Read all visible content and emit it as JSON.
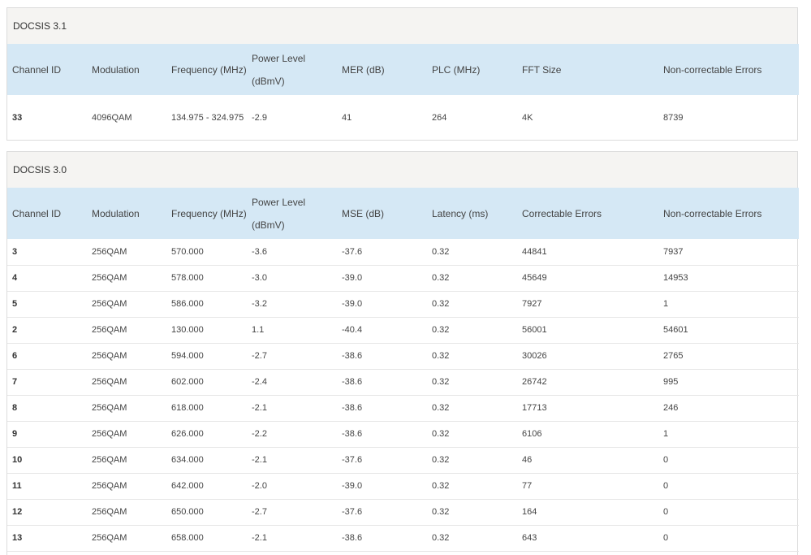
{
  "docsis31": {
    "title": "DOCSIS 3.1",
    "headers": [
      "Channel ID",
      "Modulation",
      "Frequency (MHz)",
      "Power Level (dBmV)",
      "MER (dB)",
      "PLC (MHz)",
      "FFT Size",
      "Non-correctable Errors"
    ],
    "rows": [
      {
        "channel_id": "33",
        "modulation": "4096QAM",
        "frequency": "134.975 - 324.975",
        "power": "-2.9",
        "mer": "41",
        "plc": "264",
        "fft": "4K",
        "noncorrectable": "8739"
      }
    ]
  },
  "docsis30": {
    "title": "DOCSIS 3.0",
    "headers": [
      "Channel ID",
      "Modulation",
      "Frequency (MHz)",
      "Power Level (dBmV)",
      "MSE (dB)",
      "Latency (ms)",
      "Correctable Errors",
      "Non-correctable Errors"
    ],
    "rows": [
      {
        "channel_id": "3",
        "modulation": "256QAM",
        "frequency": "570.000",
        "power": "-3.6",
        "mse": "-37.6",
        "latency": "0.32",
        "correctable": "44841",
        "noncorrectable": "7937"
      },
      {
        "channel_id": "4",
        "modulation": "256QAM",
        "frequency": "578.000",
        "power": "-3.0",
        "mse": "-39.0",
        "latency": "0.32",
        "correctable": "45649",
        "noncorrectable": "14953"
      },
      {
        "channel_id": "5",
        "modulation": "256QAM",
        "frequency": "586.000",
        "power": "-3.2",
        "mse": "-39.0",
        "latency": "0.32",
        "correctable": "7927",
        "noncorrectable": "1"
      },
      {
        "channel_id": "2",
        "modulation": "256QAM",
        "frequency": "130.000",
        "power": "1.1",
        "mse": "-40.4",
        "latency": "0.32",
        "correctable": "56001",
        "noncorrectable": "54601"
      },
      {
        "channel_id": "6",
        "modulation": "256QAM",
        "frequency": "594.000",
        "power": "-2.7",
        "mse": "-38.6",
        "latency": "0.32",
        "correctable": "30026",
        "noncorrectable": "2765"
      },
      {
        "channel_id": "7",
        "modulation": "256QAM",
        "frequency": "602.000",
        "power": "-2.4",
        "mse": "-38.6",
        "latency": "0.32",
        "correctable": "26742",
        "noncorrectable": "995"
      },
      {
        "channel_id": "8",
        "modulation": "256QAM",
        "frequency": "618.000",
        "power": "-2.1",
        "mse": "-38.6",
        "latency": "0.32",
        "correctable": "17713",
        "noncorrectable": "246"
      },
      {
        "channel_id": "9",
        "modulation": "256QAM",
        "frequency": "626.000",
        "power": "-2.2",
        "mse": "-38.6",
        "latency": "0.32",
        "correctable": "6106",
        "noncorrectable": "1"
      },
      {
        "channel_id": "10",
        "modulation": "256QAM",
        "frequency": "634.000",
        "power": "-2.1",
        "mse": "-37.6",
        "latency": "0.32",
        "correctable": "46",
        "noncorrectable": "0"
      },
      {
        "channel_id": "11",
        "modulation": "256QAM",
        "frequency": "642.000",
        "power": "-2.0",
        "mse": "-39.0",
        "latency": "0.32",
        "correctable": "77",
        "noncorrectable": "0"
      },
      {
        "channel_id": "12",
        "modulation": "256QAM",
        "frequency": "650.000",
        "power": "-2.7",
        "mse": "-37.6",
        "latency": "0.32",
        "correctable": "164",
        "noncorrectable": "0"
      },
      {
        "channel_id": "13",
        "modulation": "256QAM",
        "frequency": "658.000",
        "power": "-2.1",
        "mse": "-38.6",
        "latency": "0.32",
        "correctable": "643",
        "noncorrectable": "0"
      }
    ]
  }
}
